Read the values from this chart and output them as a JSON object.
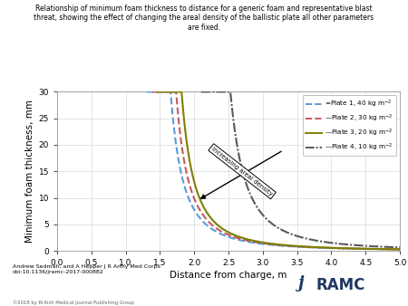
{
  "title": "Relationship of minimum foam thickness to distance for a generic foam and representative blast\nthreat, showing the effect of changing the areal density of the ballistic plate all other parameters\nare fixed.",
  "xlabel": "Distance from charge, m",
  "ylabel": "Minimum foam thickness, mm",
  "xlim": [
    0,
    5.0
  ],
  "ylim": [
    0,
    30
  ],
  "xticks": [
    0.0,
    0.5,
    1.0,
    1.5,
    2.0,
    2.5,
    3.0,
    3.5,
    4.0,
    4.5,
    5.0
  ],
  "yticks": [
    0,
    5,
    10,
    15,
    20,
    25,
    30
  ],
  "colors": [
    "#5b9bd5",
    "#c55a5a",
    "#7f7f00",
    "#595959"
  ],
  "author_text": "Andrew Sedman, and A Hepper J R Army Med Corps\ndoi:10.1136/jramc-2017-000882",
  "copyright_text": "©2018 by British Medical Journal Publishing Group",
  "background_color": "#ffffff",
  "grid_color": "#d9d9d9",
  "curve_params": [
    {
      "x0": 1.3,
      "A": 3.8,
      "p": 2.0,
      "color": "#5b9bd5",
      "ls": "dashed"
    },
    {
      "x0": 1.38,
      "A": 3.8,
      "p": 2.0,
      "color": "#c55a5a",
      "ls": "dashed"
    },
    {
      "x0": 1.46,
      "A": 3.8,
      "p": 2.0,
      "color": "#7f7f00",
      "ls": "solid"
    },
    {
      "x0": 2.1,
      "A": 5.5,
      "p": 2.0,
      "color": "#595959",
      "ls": "dashdot"
    }
  ]
}
